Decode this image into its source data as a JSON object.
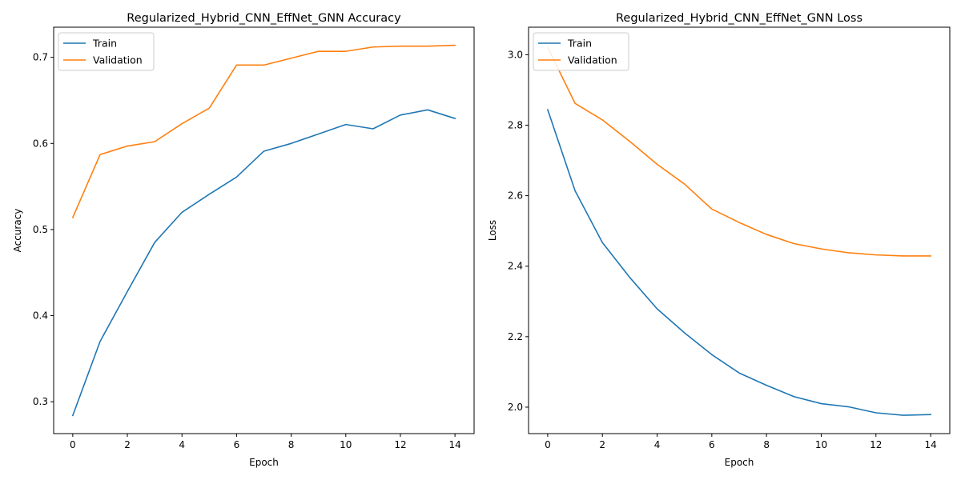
{
  "chart_data": [
    {
      "type": "line",
      "title": "Regularized_Hybrid_CNN_EffNet_GNN Accuracy",
      "xlabel": "Epoch",
      "ylabel": "Accuracy",
      "x": [
        0,
        1,
        2,
        3,
        4,
        5,
        6,
        7,
        8,
        9,
        10,
        11,
        12,
        13,
        14
      ],
      "xlim": [
        -0.7,
        14.7
      ],
      "ylim": [
        0.263,
        0.735
      ],
      "xticks": [
        0,
        2,
        4,
        6,
        8,
        10,
        12,
        14
      ],
      "yticks": [
        0.3,
        0.4,
        0.5,
        0.6,
        0.7
      ],
      "xtick_labels": [
        "0",
        "2",
        "4",
        "6",
        "8",
        "10",
        "12",
        "14"
      ],
      "ytick_labels": [
        "0.3",
        "0.4",
        "0.5",
        "0.6",
        "0.7"
      ],
      "legend_position": "top-left",
      "grid": false,
      "series": [
        {
          "name": "Train",
          "color": "#1f77b4",
          "values": [
            0.284,
            0.37,
            0.428,
            0.485,
            0.52,
            0.541,
            0.561,
            0.591,
            0.6,
            0.611,
            0.622,
            0.617,
            0.633,
            0.639,
            0.629
          ]
        },
        {
          "name": "Validation",
          "color": "#ff7f0e",
          "values": [
            0.514,
            0.587,
            0.597,
            0.602,
            0.623,
            0.641,
            0.691,
            0.691,
            0.699,
            0.707,
            0.707,
            0.712,
            0.713,
            0.713,
            0.714
          ]
        }
      ]
    },
    {
      "type": "line",
      "title": "Regularized_Hybrid_CNN_EffNet_GNN Loss",
      "xlabel": "Epoch",
      "ylabel": "Loss",
      "x": [
        0,
        1,
        2,
        3,
        4,
        5,
        6,
        7,
        8,
        9,
        10,
        11,
        12,
        13,
        14
      ],
      "xlim": [
        -0.7,
        14.7
      ],
      "ylim": [
        1.925,
        3.078
      ],
      "xticks": [
        0,
        2,
        4,
        6,
        8,
        10,
        12,
        14
      ],
      "yticks": [
        2.0,
        2.2,
        2.4,
        2.6,
        2.8,
        3.0
      ],
      "xtick_labels": [
        "0",
        "2",
        "4",
        "6",
        "8",
        "10",
        "12",
        "14"
      ],
      "ytick_labels": [
        "2.0",
        "2.2",
        "2.4",
        "2.6",
        "2.8",
        "3.0"
      ],
      "legend_position": "top-left",
      "grid": false,
      "series": [
        {
          "name": "Train",
          "color": "#1f77b4",
          "values": [
            2.844,
            2.614,
            2.467,
            2.368,
            2.279,
            2.211,
            2.149,
            2.097,
            2.062,
            2.03,
            2.01,
            2.001,
            1.984,
            1.977,
            1.979
          ]
        },
        {
          "name": "Validation",
          "color": "#ff7f0e",
          "values": [
            3.021,
            2.862,
            2.815,
            2.754,
            2.689,
            2.633,
            2.562,
            2.524,
            2.49,
            2.464,
            2.449,
            2.438,
            2.432,
            2.429,
            2.429
          ]
        }
      ]
    }
  ]
}
